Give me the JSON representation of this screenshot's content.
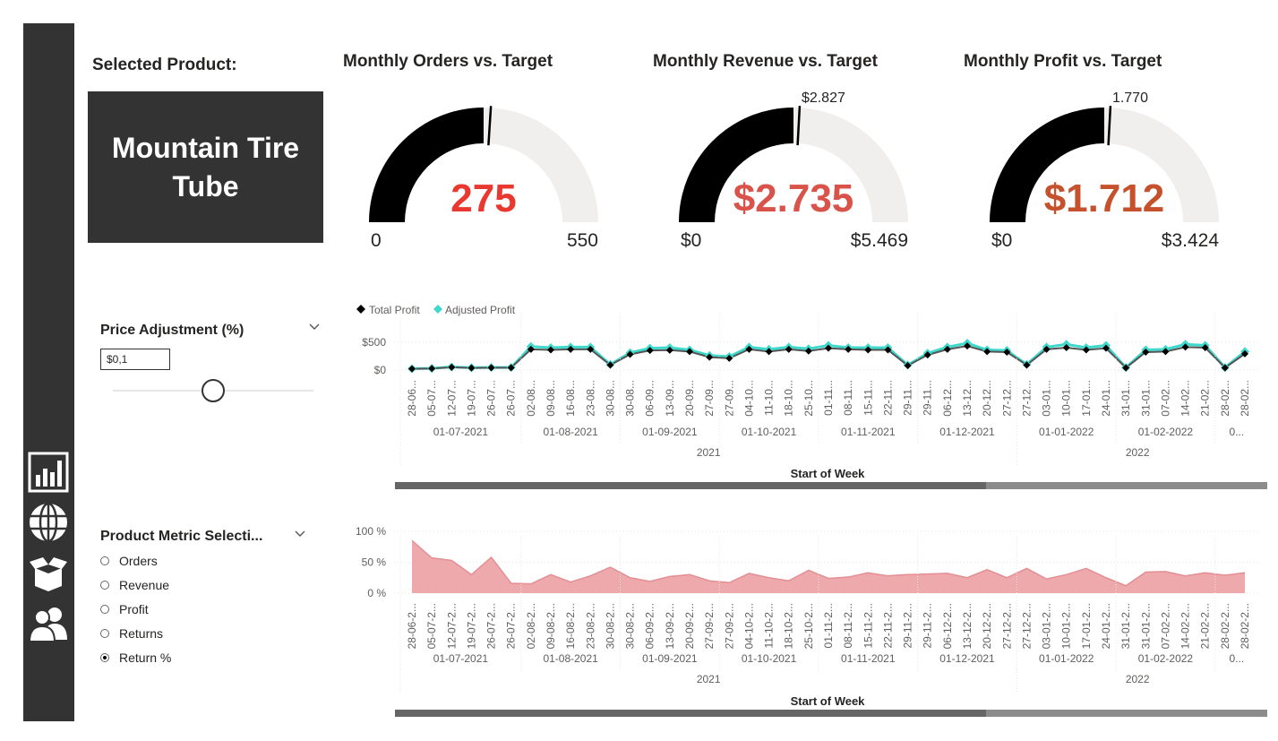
{
  "sidebar": {
    "icons": [
      "bar-chart-icon",
      "globe-icon",
      "box-icon",
      "users-icon"
    ]
  },
  "selected_product": {
    "label": "Selected Product:",
    "name_line1": "Mountain Tire",
    "name_line2": "Tube"
  },
  "gauges": [
    {
      "title": "Monthly Orders vs. Target",
      "value": "275",
      "min": "0",
      "max": "550",
      "target_label": "",
      "fraction": 0.5,
      "target_fraction": 0.52,
      "value_color": "#e8382f"
    },
    {
      "title": "Monthly Revenue vs. Target",
      "value": "$2.735",
      "min": "$0",
      "max": "$5.469",
      "target_label": "$2.827",
      "fraction": 0.5,
      "target_fraction": 0.517,
      "value_color": "#d9534a"
    },
    {
      "title": "Monthly Profit vs. Target",
      "value": "$1.712",
      "min": "$0",
      "max": "$3.424",
      "target_label": "1.770",
      "fraction": 0.5,
      "target_fraction": 0.517,
      "value_color": "#c5522c"
    }
  ],
  "price_adjustment": {
    "title": "Price Adjustment (%)",
    "value": "$0,1",
    "slider_fraction": 0.5
  },
  "metric_selection": {
    "title": "Product Metric Selecti...",
    "options": [
      "Orders",
      "Revenue",
      "Profit",
      "Returns",
      "Return %"
    ],
    "selected": "Return %"
  },
  "colors": {
    "total_profit": "#000000",
    "adjusted_profit": "#3ed9cc",
    "return_area": "#eea9ac",
    "return_line": "#e38f94",
    "gauge_fill": "#000000",
    "gauge_track": "#f0efee"
  },
  "chart_data": [
    {
      "type": "line",
      "legend": "top-left",
      "series": [
        {
          "name": "Total Profit",
          "values": [
            22,
            28,
            50,
            38,
            42,
            42,
            370,
            360,
            370,
            370,
            90,
            280,
            350,
            355,
            330,
            230,
            210,
            370,
            330,
            370,
            340,
            390,
            370,
            360,
            360,
            80,
            270,
            370,
            430,
            330,
            320,
            90,
            370,
            400,
            360,
            390,
            40,
            320,
            330,
            410,
            400,
            40,
            290
          ]
        },
        {
          "name": "Adjusted Profit",
          "values": [
            25,
            30,
            55,
            42,
            46,
            46,
            420,
            400,
            410,
            410,
            100,
            310,
            390,
            400,
            360,
            260,
            240,
            410,
            370,
            410,
            380,
            440,
            400,
            400,
            400,
            90,
            300,
            410,
            480,
            360,
            350,
            100,
            410,
            460,
            400,
            440,
            45,
            360,
            370,
            460,
            440,
            45,
            330
          ]
        }
      ],
      "y_ticks": [
        "$500",
        "$0"
      ],
      "ylim": [
        0,
        560
      ],
      "x_tick_labels": [
        "28-06...",
        "05-07...",
        "12-07...",
        "19-07...",
        "26-07...",
        "26-07...",
        "02-08...",
        "09-08...",
        "16-08...",
        "23-08...",
        "30-08...",
        "30-08...",
        "06-09...",
        "13-09...",
        "20-09...",
        "27-09...",
        "27-09...",
        "04-10...",
        "11-10...",
        "18-10...",
        "25-10...",
        "01-11...",
        "08-11...",
        "15-11...",
        "22-11...",
        "29-11...",
        "29-11...",
        "06-12...",
        "13-12...",
        "20-12...",
        "27-12...",
        "27-12...",
        "03-01...",
        "10-01...",
        "17-01...",
        "24-01...",
        "31-01...",
        "31-01...",
        "07-02...",
        "14-02...",
        "21-02...",
        "28-02...",
        "28-02..."
      ],
      "months": [
        "01-07-2021",
        "01-08-2021",
        "01-09-2021",
        "01-10-2021",
        "01-11-2021",
        "01-12-2021",
        "01-01-2022",
        "01-02-2022",
        "0..."
      ],
      "years": [
        "2021",
        "2022"
      ],
      "xlabel": "Start of Week"
    },
    {
      "type": "area",
      "series": [
        {
          "name": "Return %",
          "values": [
            85,
            57,
            53,
            30,
            58,
            16,
            15,
            30,
            18,
            28,
            42,
            25,
            19,
            27,
            30,
            20,
            17,
            32,
            25,
            20,
            37,
            24,
            26,
            33,
            28,
            30,
            31,
            32,
            25,
            38,
            25,
            40,
            23,
            30,
            40,
            25,
            12,
            34,
            35,
            28,
            33,
            29,
            33
          ]
        }
      ],
      "y_ticks": [
        "100 %",
        "50 %",
        "0 %"
      ],
      "ylim": [
        0,
        100
      ],
      "x_tick_labels": [
        "28-06-2...",
        "05-07-2...",
        "12-07-2...",
        "19-07-2...",
        "26-07-2...",
        "26-07-2...",
        "02-08-2...",
        "09-08-2...",
        "16-08-2...",
        "23-08-2...",
        "30-08-2...",
        "30-08-2...",
        "06-09-2...",
        "13-09-2...",
        "20-09-2...",
        "27-09-2...",
        "27-09-2...",
        "04-10-2...",
        "11-10-2...",
        "18-10-2...",
        "25-10-2...",
        "01-11-2...",
        "08-11-2...",
        "15-11-2...",
        "22-11-2...",
        "29-11-2...",
        "29-11-2...",
        "06-12-2...",
        "13-12-2...",
        "20-12-2...",
        "27-12-2...",
        "27-12-2...",
        "03-01-2...",
        "10-01-2...",
        "17-01-2...",
        "24-01-2...",
        "31-01-2...",
        "31-01-2...",
        "07-02-2...",
        "14-02-2...",
        "21-02-2...",
        "28-02-2...",
        "28-02-2..."
      ],
      "months": [
        "01-07-2021",
        "01-08-2021",
        "01-09-2021",
        "01-10-2021",
        "01-11-2021",
        "01-12-2021",
        "01-01-2022",
        "01-02-2022",
        "0..."
      ],
      "years": [
        "2021",
        "2022"
      ],
      "xlabel": "Start of Week"
    }
  ]
}
